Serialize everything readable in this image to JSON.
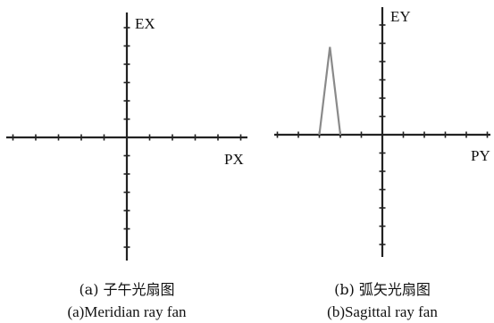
{
  "panels": [
    {
      "vertical_axis_label": "EX",
      "horizontal_axis_label": "PX",
      "caption_cn": "(a) 子午光扇图",
      "caption_en": "(a)Meridian ray fan"
    },
    {
      "vertical_axis_label": "EY",
      "horizontal_axis_label": "PY",
      "caption_cn": "(b) 弧矢光扇图",
      "caption_en": "(b)Sagittal ray fan"
    }
  ],
  "colors": {
    "axes": "#222222",
    "ray_curve": "#8a8a8a"
  },
  "chart_data": [
    {
      "type": "line",
      "x_ticks_each_side": 5,
      "y_ticks_each_side": 6,
      "series": []
    },
    {
      "type": "line",
      "x_ticks_each_side": 5,
      "y_ticks_each_side": 6,
      "series": [
        {
          "x": [
            -0.6,
            -0.5,
            -0.4
          ],
          "y": [
            0,
            1.6,
            0
          ]
        }
      ]
    }
  ]
}
